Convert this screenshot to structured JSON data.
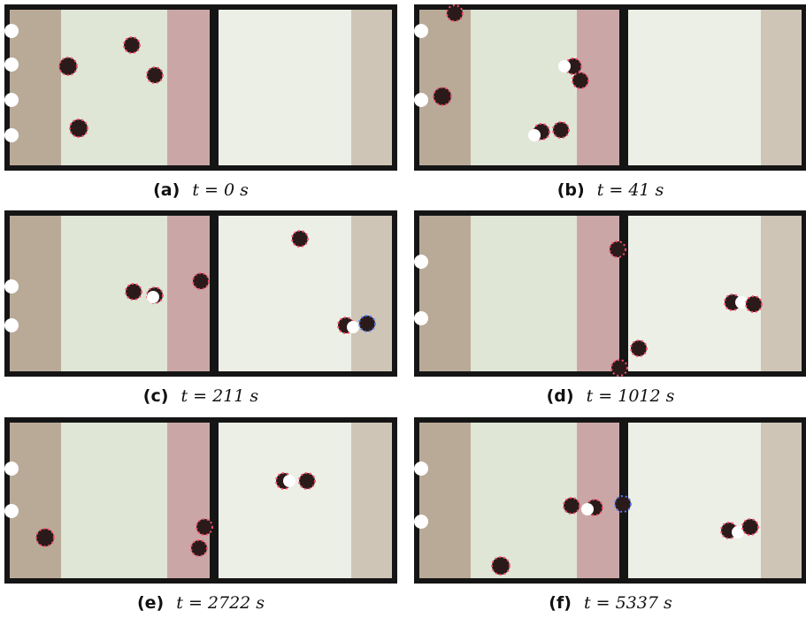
{
  "panels": [
    {
      "label": "(a)",
      "time": "t = 0 s"
    },
    {
      "label": "(b)",
      "time": "t = 41 s"
    },
    {
      "label": "(c)",
      "time": "t = 211 s"
    },
    {
      "label": "(d)",
      "time": "t = 1012 s"
    },
    {
      "label": "(e)",
      "time": "t = 2722 s"
    },
    {
      "label": "(f)",
      "time": "t = 5337 s"
    }
  ],
  "colors": {
    "frame": "#151515",
    "nest_zone": "#b9aa98",
    "light_zone": "#dfe6d6",
    "pink_zone": "#caa7a6",
    "bright_zone": "#ecefe6",
    "robot": "#2a1a1a",
    "led": "#ff4d6d",
    "object": "#ffffff"
  }
}
